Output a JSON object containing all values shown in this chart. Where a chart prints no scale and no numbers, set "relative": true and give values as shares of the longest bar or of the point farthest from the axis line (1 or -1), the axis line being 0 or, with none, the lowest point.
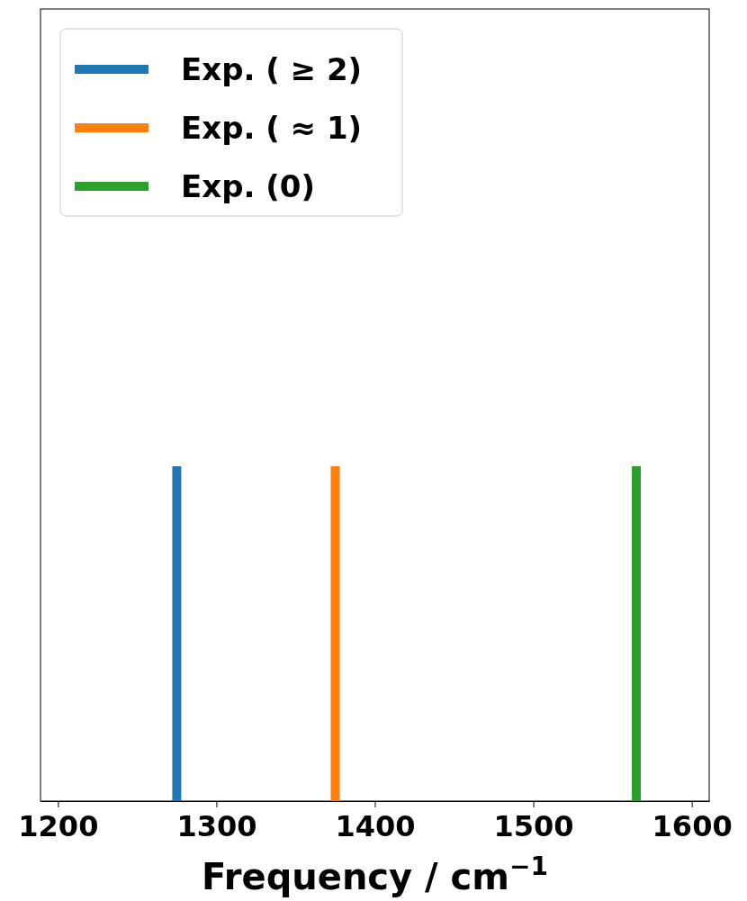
{
  "chart_data": {
    "type": "line",
    "xlabel": "Frequency / cm$^{−1}$",
    "relative": true,
    "xlim": [
      1189,
      1611
    ],
    "xticks": [
      1200,
      1300,
      1400,
      1500,
      1600
    ],
    "tick_labels": "x",
    "legend": "top left",
    "grid": false,
    "marker": "none",
    "line_style": "solid",
    "series": [
      {
        "name": "Exp. ( ≥ 2)",
        "color": "#1f77b4",
        "x": [
          1275,
          1275
        ],
        "values": [
          0,
          1
        ]
      },
      {
        "name": "Exp. ( ≈ 1)",
        "color": "#ff7f0e",
        "x": [
          1375,
          1375
        ],
        "values": [
          0,
          1
        ]
      },
      {
        "name": "Exp. (0)",
        "color": "#2ca02c",
        "x": [
          1565,
          1565
        ],
        "values": [
          0,
          1
        ]
      }
    ]
  }
}
